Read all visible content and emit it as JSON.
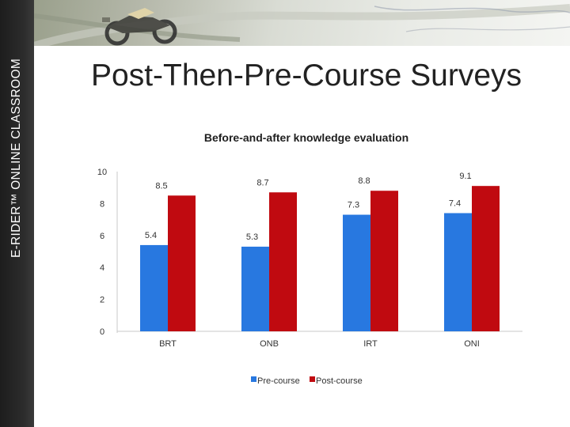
{
  "side_label": "E-RIDER™ ONLINE CLASSROOM",
  "slide_title": "Post-Then-Pre-Course Surveys",
  "colors": {
    "pre": "#2878e0",
    "post": "#c00a10",
    "sidebar": "#262626"
  },
  "icons": {
    "banner": "motorcycle-road-map-photo"
  },
  "chart_data": {
    "type": "bar",
    "title": "Before-and-after knowledge evaluation",
    "categories": [
      "BRT",
      "ONB",
      "IRT",
      "ONI"
    ],
    "series": [
      {
        "name": "Pre-course",
        "values": [
          5.4,
          5.3,
          7.3,
          7.4
        ]
      },
      {
        "name": "Post-course",
        "values": [
          8.5,
          8.7,
          8.8,
          9.1
        ]
      }
    ],
    "data_labels": [
      [
        "5.4",
        "5.3",
        "7.3",
        "7.4"
      ],
      [
        "8.5",
        "8.7",
        "8.8",
        "9.1"
      ]
    ],
    "ylim": [
      0,
      10
    ],
    "yticks": [
      0,
      2,
      4,
      6,
      8,
      10
    ],
    "legend": "bottom",
    "grid": false
  }
}
